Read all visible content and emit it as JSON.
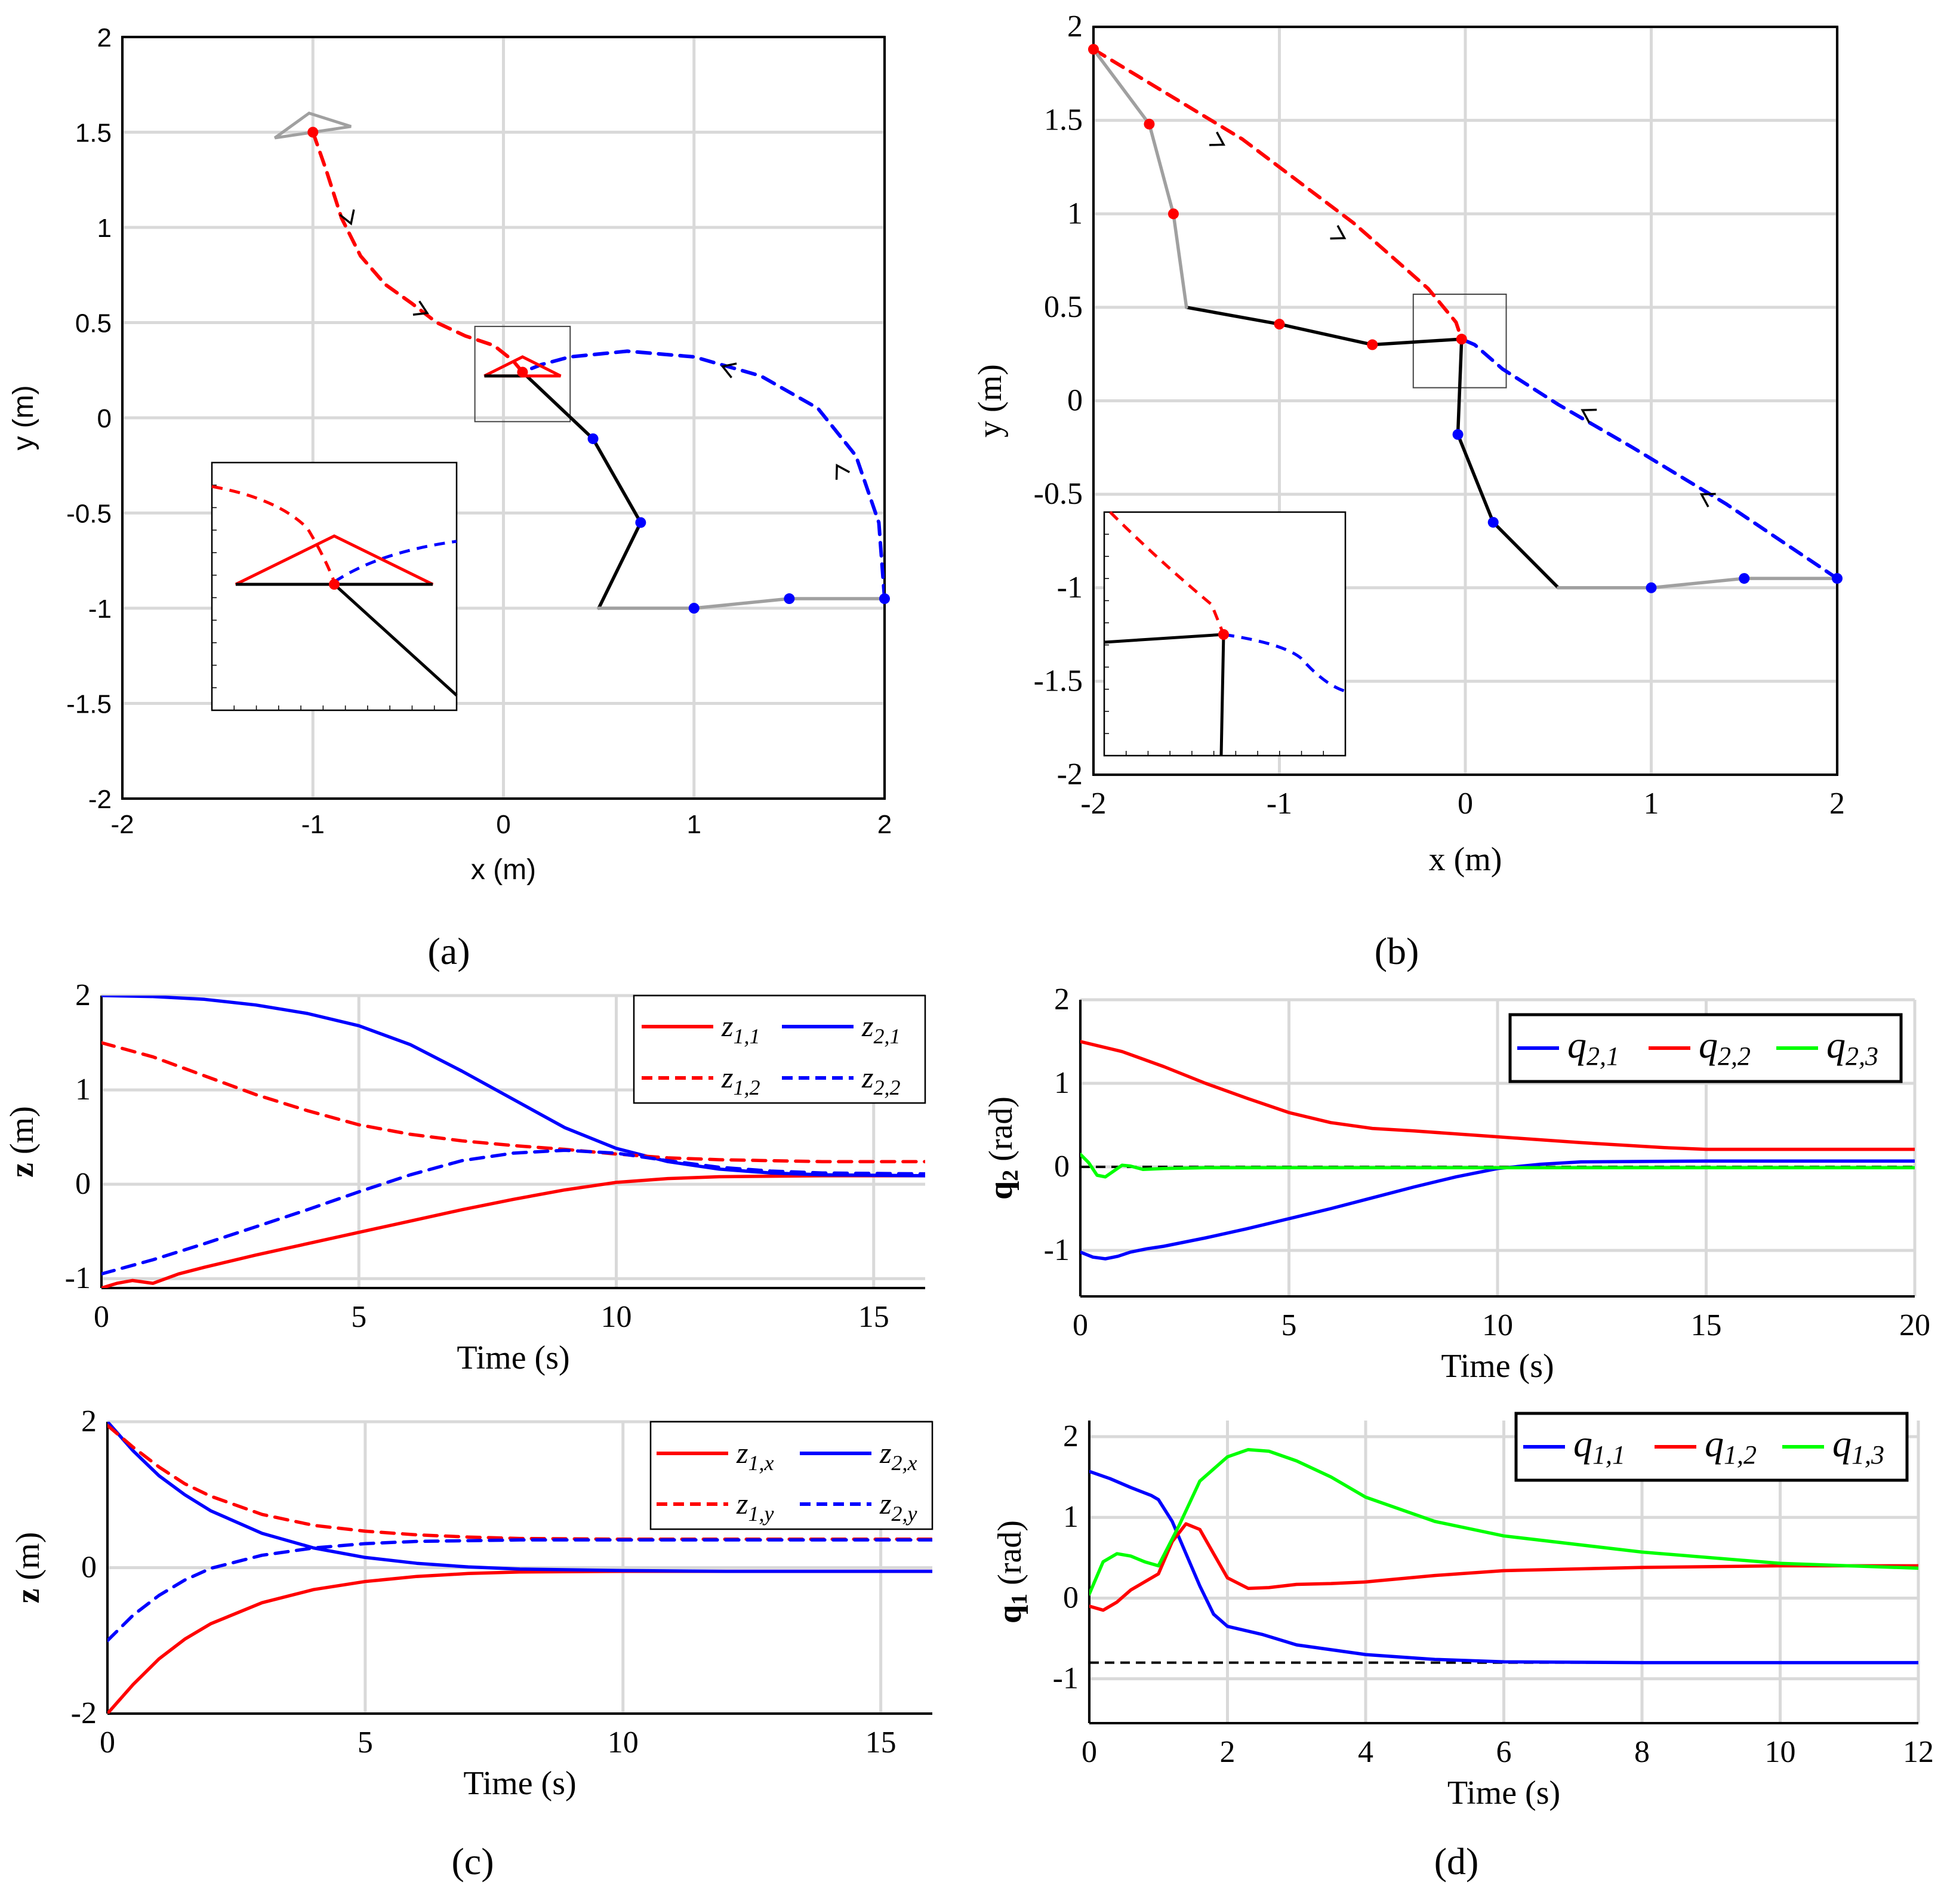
{
  "chart_data": [
    {
      "id": "a",
      "type": "line",
      "caption": "(a)",
      "xlabel": "x (m)",
      "ylabel": "y (m)",
      "xlim": [
        -2,
        2
      ],
      "ylim": [
        -2,
        2
      ],
      "xticks": [
        "-2",
        "-1",
        "0",
        "1",
        "2"
      ],
      "yticks": [
        "2",
        "1.5",
        "1",
        "0.5",
        "0",
        "-0.5",
        "-1",
        "-1.5",
        "-2"
      ],
      "grid": true,
      "series": [
        {
          "name": "red agent trajectory",
          "style": "dashed",
          "color": "#ff0000",
          "x": [
            -1.0,
            -0.93,
            -0.85,
            -0.75,
            -0.62,
            -0.48,
            -0.35,
            -0.2,
            -0.05,
            0.05,
            0.1
          ],
          "y": [
            1.5,
            1.3,
            1.05,
            0.85,
            0.7,
            0.6,
            0.5,
            0.43,
            0.38,
            0.3,
            0.24
          ]
        },
        {
          "name": "blue agent trajectory",
          "style": "dashed",
          "color": "#0000ff",
          "x": [
            2.0,
            1.97,
            1.85,
            1.65,
            1.35,
            1.0,
            0.65,
            0.35,
            0.2,
            0.1
          ],
          "y": [
            -0.95,
            -0.55,
            -0.2,
            0.05,
            0.22,
            0.32,
            0.35,
            0.32,
            0.28,
            0.24
          ]
        },
        {
          "name": "final arm",
          "style": "solid",
          "color": "#000000",
          "x": [
            0.5,
            0.72,
            0.47,
            0.1
          ],
          "y": [
            -1.0,
            -0.55,
            -0.11,
            0.24
          ]
        },
        {
          "name": "initial arm",
          "style": "solid",
          "color": "#a0a0a0",
          "x": [
            0.5,
            1.0,
            1.5,
            2.0
          ],
          "y": [
            -1.0,
            -1.0,
            -0.95,
            -0.95
          ]
        }
      ],
      "joints_blue": {
        "x": [
          0.47,
          0.72,
          1.0,
          1.5,
          2.0
        ],
        "y": [
          -0.11,
          -0.55,
          -1.0,
          -0.95,
          -0.95
        ]
      },
      "joints_red": {
        "x": [
          -1.0,
          0.1
        ],
        "y": [
          1.5,
          0.24
        ]
      },
      "initial_triangle": {
        "x": [
          -1.2,
          -1.02,
          -0.8
        ],
        "y": [
          1.47,
          1.6,
          1.53
        ]
      },
      "final_triangle": {
        "x": [
          -0.1,
          0.1,
          0.3
        ],
        "y": [
          0.22,
          0.32,
          0.22
        ]
      },
      "inset_box": {
        "x": [
          -0.15,
          0.35
        ],
        "y": [
          -0.02,
          0.48
        ]
      }
    },
    {
      "id": "b",
      "type": "line",
      "caption": "(b)",
      "xlabel": "x (m)",
      "ylabel": "y (m)",
      "xlim": [
        -2,
        2
      ],
      "ylim": [
        -2,
        2
      ],
      "xticks": [
        "-2",
        "-1",
        "0",
        "1",
        "2"
      ],
      "yticks": [
        "2",
        "1.5",
        "1",
        "0.5",
        "0",
        "-0.5",
        "-1",
        "-1.5",
        "-2"
      ],
      "grid": true,
      "series": [
        {
          "name": "red agent trajectory",
          "style": "dashed",
          "color": "#ff0000",
          "x": [
            -2.0,
            -1.2,
            -0.6,
            -0.2,
            -0.05,
            -0.02
          ],
          "y": [
            1.88,
            1.4,
            0.95,
            0.6,
            0.42,
            0.33
          ]
        },
        {
          "name": "blue agent trajectory",
          "style": "dashed",
          "color": "#0000ff",
          "x": [
            2.0,
            1.4,
            0.9,
            0.5,
            0.2,
            0.05,
            -0.02
          ],
          "y": [
            -0.95,
            -0.55,
            -0.25,
            -0.02,
            0.17,
            0.3,
            0.33
          ]
        },
        {
          "name": "final arm left",
          "style": "solid",
          "color": "#000000",
          "x": [
            -1.5,
            -1.0,
            -0.5,
            -0.02
          ],
          "y": [
            0.5,
            0.41,
            0.3,
            0.33
          ]
        },
        {
          "name": "final arm right",
          "style": "solid",
          "color": "#000000",
          "x": [
            -0.02,
            -0.04,
            0.15,
            0.5
          ],
          "y": [
            0.33,
            -0.18,
            -0.65,
            -1.0
          ]
        },
        {
          "name": "initial arm left",
          "style": "solid",
          "color": "#a0a0a0",
          "x": [
            -2.0,
            -1.7,
            -1.57,
            -1.5
          ],
          "y": [
            1.88,
            1.48,
            1.0,
            0.5
          ]
        },
        {
          "name": "initial arm right",
          "style": "solid",
          "color": "#a0a0a0",
          "x": [
            0.5,
            1.0,
            1.5,
            2.0
          ],
          "y": [
            -1.0,
            -1.0,
            -0.95,
            -0.95
          ]
        }
      ],
      "joints_red": {
        "x": [
          -2.0,
          -1.7,
          -1.57,
          -1.0,
          -0.5,
          -0.02
        ],
        "y": [
          1.88,
          1.48,
          1.0,
          0.41,
          0.3,
          0.33
        ]
      },
      "joints_blue": {
        "x": [
          -0.04,
          0.15,
          1.0,
          1.5,
          2.0
        ],
        "y": [
          -0.18,
          -0.65,
          -1.0,
          -0.95,
          -0.95
        ]
      },
      "inset_box": {
        "x": [
          -0.28,
          0.22
        ],
        "y": [
          0.07,
          0.57
        ]
      }
    },
    {
      "id": "c1",
      "type": "line",
      "ylabel": "z (m)",
      "xlabel": "Time (s)",
      "xlim": [
        0,
        16
      ],
      "ylim": [
        -1.1,
        2.0
      ],
      "xticks": [
        "0",
        "5",
        "10",
        "15"
      ],
      "yticks": [
        "2",
        "1",
        "0",
        "-1"
      ],
      "grid": true,
      "legend": [
        "z1,1",
        "z2,1",
        "z1,2",
        "z2,2"
      ],
      "series": [
        {
          "name": "z1,1",
          "style": "solid",
          "color": "#ff0000",
          "x": [
            0,
            0.3,
            0.6,
            1,
            1.5,
            2,
            3,
            4,
            5,
            6,
            7,
            8,
            9,
            10,
            11,
            12,
            14,
            16
          ],
          "y": [
            -1.1,
            -1.05,
            -1.02,
            -1.05,
            -0.95,
            -0.88,
            -0.75,
            -0.63,
            -0.51,
            -0.39,
            -0.27,
            -0.16,
            -0.06,
            0.02,
            0.06,
            0.08,
            0.09,
            0.09
          ]
        },
        {
          "name": "z2,1",
          "style": "solid",
          "color": "#0000ff",
          "x": [
            0,
            1,
            2,
            3,
            4,
            5,
            6,
            7,
            8,
            9,
            10,
            11,
            12,
            13,
            14,
            16
          ],
          "y": [
            2.0,
            1.99,
            1.96,
            1.9,
            1.81,
            1.68,
            1.48,
            1.2,
            0.9,
            0.6,
            0.38,
            0.24,
            0.16,
            0.12,
            0.1,
            0.09
          ]
        },
        {
          "name": "z1,2",
          "style": "dashed",
          "color": "#ff0000",
          "x": [
            0,
            1,
            2,
            3,
            4,
            5,
            6,
            7,
            8,
            9,
            10,
            11,
            12,
            14,
            16
          ],
          "y": [
            1.5,
            1.35,
            1.15,
            0.95,
            0.78,
            0.63,
            0.53,
            0.46,
            0.41,
            0.37,
            0.32,
            0.28,
            0.26,
            0.24,
            0.24
          ]
        },
        {
          "name": "z2,2",
          "style": "dashed",
          "color": "#0000ff",
          "x": [
            0,
            1,
            2,
            3,
            4,
            5,
            6,
            7,
            8,
            9,
            10,
            11,
            12,
            13,
            14,
            16
          ],
          "y": [
            -0.95,
            -0.8,
            -0.63,
            -0.45,
            -0.27,
            -0.08,
            0.1,
            0.25,
            0.33,
            0.36,
            0.33,
            0.25,
            0.18,
            0.14,
            0.12,
            0.11
          ]
        }
      ]
    },
    {
      "id": "c2",
      "type": "line",
      "ylabel": "z (m)",
      "xlabel": "Time (s)",
      "xlim": [
        0,
        16
      ],
      "ylim": [
        -2,
        2
      ],
      "xticks": [
        "0",
        "5",
        "10",
        "15"
      ],
      "yticks": [
        "2",
        "0",
        "-2"
      ],
      "grid": true,
      "legend": [
        "z1,x",
        "z2,x",
        "z1,y",
        "z2,y"
      ],
      "series": [
        {
          "name": "z1,x",
          "style": "solid",
          "color": "#ff0000",
          "x": [
            0,
            0.5,
            1,
            1.5,
            2,
            3,
            4,
            5,
            6,
            7,
            8,
            10,
            12,
            16
          ],
          "y": [
            -2.0,
            -1.6,
            -1.25,
            -0.98,
            -0.77,
            -0.48,
            -0.3,
            -0.19,
            -0.12,
            -0.08,
            -0.06,
            -0.05,
            -0.05,
            -0.05
          ]
        },
        {
          "name": "z2,x",
          "style": "solid",
          "color": "#0000ff",
          "x": [
            0,
            0.5,
            1,
            1.5,
            2,
            3,
            4,
            5,
            6,
            7,
            8,
            10,
            12,
            16
          ],
          "y": [
            2.0,
            1.6,
            1.26,
            1.0,
            0.78,
            0.47,
            0.27,
            0.14,
            0.06,
            0.01,
            -0.02,
            -0.04,
            -0.05,
            -0.05
          ]
        },
        {
          "name": "z1,y",
          "style": "dashed",
          "color": "#ff0000",
          "x": [
            0,
            0.5,
            1,
            1.5,
            2,
            3,
            4,
            5,
            6,
            7,
            8,
            10,
            12,
            16
          ],
          "y": [
            1.95,
            1.65,
            1.38,
            1.15,
            0.98,
            0.73,
            0.58,
            0.5,
            0.45,
            0.42,
            0.4,
            0.39,
            0.39,
            0.39
          ]
        },
        {
          "name": "z2,y",
          "style": "dashed",
          "color": "#0000ff",
          "x": [
            0,
            0.5,
            1,
            1.5,
            2,
            3,
            4,
            5,
            6,
            7,
            8,
            10,
            12,
            16
          ],
          "y": [
            -1.0,
            -0.65,
            -0.38,
            -0.17,
            -0.01,
            0.17,
            0.27,
            0.33,
            0.36,
            0.37,
            0.38,
            0.38,
            0.38,
            0.38
          ]
        }
      ]
    },
    {
      "id": "d1",
      "type": "line",
      "ylabel": "q2 (rad)",
      "xlabel": "Time (s)",
      "xlim": [
        0,
        20
      ],
      "ylim": [
        -1.55,
        2
      ],
      "xticks": [
        "0",
        "5",
        "10",
        "15",
        "20"
      ],
      "yticks": [
        "2",
        "1",
        "0",
        "-1"
      ],
      "grid": true,
      "legend": [
        "q2,1",
        "q2,2",
        "q2,3"
      ],
      "reference_line": 0,
      "series": [
        {
          "name": "q2,1",
          "style": "solid",
          "color": "#0000ff",
          "x": [
            0,
            0.3,
            0.6,
            0.9,
            1.2,
            1.6,
            2,
            3,
            4,
            5,
            6,
            7,
            8,
            9,
            10,
            11,
            12,
            15,
            20
          ],
          "y": [
            -1.02,
            -1.08,
            -1.1,
            -1.07,
            -1.02,
            -0.98,
            -0.95,
            -0.85,
            -0.74,
            -0.62,
            -0.5,
            -0.37,
            -0.24,
            -0.12,
            -0.02,
            0.03,
            0.06,
            0.07,
            0.07
          ]
        },
        {
          "name": "q2,2",
          "style": "solid",
          "color": "#ff0000",
          "x": [
            0,
            1,
            2,
            3,
            4,
            5,
            6,
            7,
            8,
            10,
            12,
            14,
            15,
            20
          ],
          "y": [
            1.5,
            1.38,
            1.2,
            1.0,
            0.82,
            0.65,
            0.53,
            0.46,
            0.43,
            0.36,
            0.29,
            0.23,
            0.21,
            0.21
          ]
        },
        {
          "name": "q2,3",
          "style": "solid",
          "color": "#00ff00",
          "x": [
            0,
            0.2,
            0.4,
            0.6,
            0.8,
            1.0,
            1.2,
            1.5,
            2,
            3,
            20
          ],
          "y": [
            0.15,
            0.05,
            -0.1,
            -0.12,
            -0.05,
            0.02,
            0.01,
            -0.03,
            -0.02,
            -0.01,
            -0.01
          ]
        }
      ]
    },
    {
      "id": "d2",
      "type": "line",
      "ylabel": "q1 (rad)",
      "xlabel": "Time (s)",
      "xlim": [
        0,
        12
      ],
      "ylim": [
        -1.55,
        2.2
      ],
      "xticks": [
        "0",
        "2",
        "4",
        "6",
        "8",
        "10",
        "12"
      ],
      "yticks": [
        "2",
        "1",
        "0",
        "-1"
      ],
      "grid": true,
      "legend": [
        "q1,1",
        "q1,2",
        "q1,3"
      ],
      "reference_line": -0.8,
      "series": [
        {
          "name": "q1,1",
          "style": "solid",
          "color": "#0000ff",
          "x": [
            0,
            0.3,
            0.6,
            0.9,
            1.0,
            1.2,
            1.4,
            1.6,
            1.8,
            2.0,
            2.5,
            3.0,
            4.0,
            5.0,
            6.0,
            8.0,
            10.0,
            12.0
          ],
          "y": [
            1.57,
            1.48,
            1.37,
            1.27,
            1.22,
            0.95,
            0.55,
            0.15,
            -0.2,
            -0.35,
            -0.45,
            -0.58,
            -0.7,
            -0.76,
            -0.79,
            -0.8,
            -0.8,
            -0.8
          ]
        },
        {
          "name": "q1,2",
          "style": "solid",
          "color": "#ff0000",
          "x": [
            0,
            0.2,
            0.4,
            0.6,
            0.8,
            1.0,
            1.2,
            1.4,
            1.6,
            1.8,
            2.0,
            2.3,
            2.6,
            3.0,
            3.5,
            4.0,
            5.0,
            6.0,
            8.0,
            10.0,
            12.0
          ],
          "y": [
            -0.1,
            -0.15,
            -0.05,
            0.1,
            0.2,
            0.3,
            0.7,
            0.92,
            0.85,
            0.55,
            0.25,
            0.12,
            0.13,
            0.17,
            0.18,
            0.2,
            0.28,
            0.34,
            0.38,
            0.4,
            0.4
          ]
        },
        {
          "name": "q1,3",
          "style": "solid",
          "color": "#00ff00",
          "x": [
            0,
            0.2,
            0.4,
            0.6,
            0.8,
            1.0,
            1.3,
            1.6,
            2.0,
            2.3,
            2.6,
            3.0,
            3.5,
            4.0,
            5.0,
            6.0,
            8.0,
            10.0,
            12.0
          ],
          "y": [
            0.05,
            0.45,
            0.55,
            0.52,
            0.45,
            0.4,
            0.9,
            1.45,
            1.75,
            1.84,
            1.82,
            1.7,
            1.5,
            1.25,
            0.95,
            0.77,
            0.57,
            0.43,
            0.37
          ]
        }
      ]
    }
  ]
}
